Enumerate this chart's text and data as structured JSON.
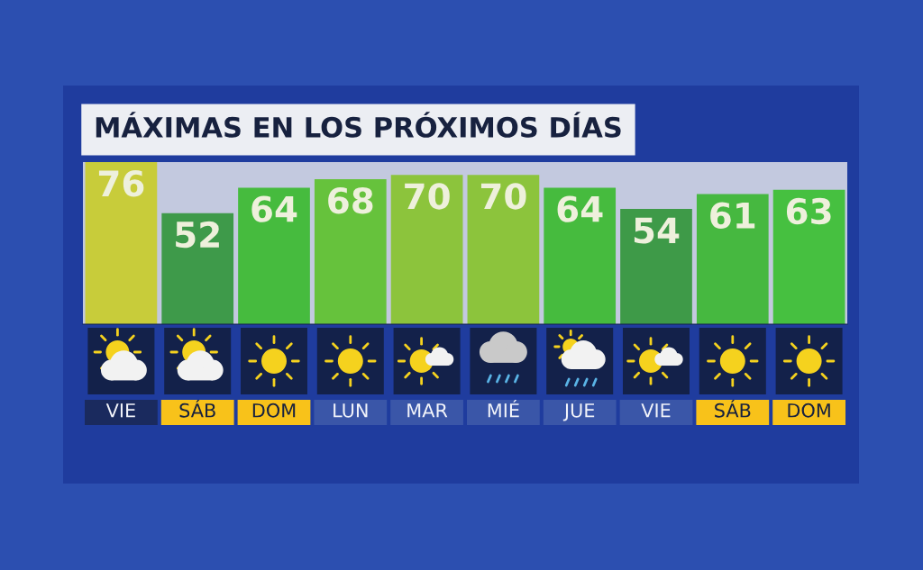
{
  "chart_data": {
    "type": "bar",
    "title": "MÁXIMAS EN LOS PRÓXIMOS DÍAS",
    "categories": [
      "VIE",
      "SÁB",
      "DOM",
      "LUN",
      "MAR",
      "MIÉ",
      "JUE",
      "VIE",
      "SÁB",
      "DOM"
    ],
    "values": [
      76,
      52,
      64,
      68,
      70,
      70,
      64,
      54,
      61,
      63
    ],
    "colors": [
      "#c8cc3a",
      "#3e9a4a",
      "#46bb3e",
      "#66c23c",
      "#8cc43c",
      "#8cc43c",
      "#46bb3e",
      "#3e9a48",
      "#46b840",
      "#46c040"
    ],
    "data_labels": true
  }
}
